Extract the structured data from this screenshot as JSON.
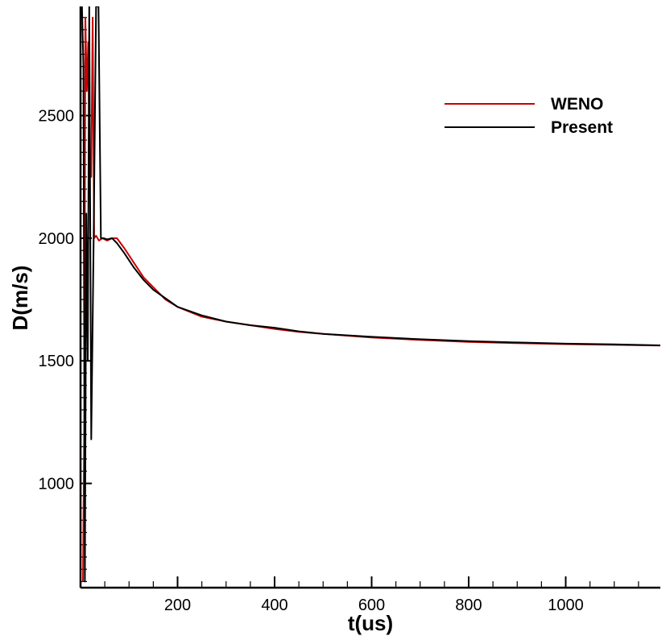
{
  "chart_data": {
    "type": "line",
    "title": "",
    "xlabel": "t(us)",
    "ylabel": "D(m/s)",
    "xlim": [
      0,
      1195
    ],
    "ylim": [
      575,
      2945
    ],
    "x_ticks": [
      200,
      400,
      600,
      800,
      1000
    ],
    "x_tick_labels": [
      "200",
      "400",
      "600",
      "800",
      "1000"
    ],
    "y_ticks": [
      1000,
      1500,
      2000,
      2500
    ],
    "y_tick_labels": [
      "1000",
      "1500",
      "2000",
      "2500"
    ],
    "grid": false,
    "legend_position": "top-right",
    "series": [
      {
        "name": "WENO",
        "color": "#cc0000",
        "x": [
          5,
          8,
          10,
          13,
          16,
          18,
          22,
          25,
          28,
          32,
          35,
          38,
          45,
          55,
          65,
          75,
          90,
          110,
          130,
          150,
          175,
          200,
          250,
          300,
          350,
          400,
          450,
          500,
          600,
          700,
          800,
          900,
          1000,
          1100,
          1195
        ],
        "y": [
          600,
          1300,
          2900,
          2600,
          2800,
          2400,
          2250,
          2900,
          2000,
          2010,
          2000,
          1990,
          2000,
          1990,
          2000,
          2000,
          1960,
          1900,
          1840,
          1800,
          1750,
          1720,
          1680,
          1660,
          1645,
          1630,
          1618,
          1610,
          1595,
          1585,
          1577,
          1572,
          1568,
          1565,
          1562
        ]
      },
      {
        "name": "Present",
        "color": "#000000",
        "x": [
          3,
          6,
          9,
          12,
          15,
          18,
          22,
          27,
          32,
          37,
          42,
          48,
          55,
          65,
          75,
          90,
          110,
          130,
          150,
          175,
          200,
          250,
          300,
          350,
          400,
          450,
          500,
          600,
          700,
          800,
          900,
          1000,
          1100,
          1195
        ],
        "y": [
          2945,
          2700,
          600,
          2100,
          1500,
          2945,
          1180,
          1995,
          2945,
          2945,
          2000,
          2000,
          1995,
          2000,
          1980,
          1940,
          1880,
          1830,
          1790,
          1755,
          1720,
          1685,
          1660,
          1645,
          1635,
          1620,
          1610,
          1598,
          1588,
          1580,
          1575,
          1570,
          1567,
          1563
        ]
      }
    ]
  }
}
